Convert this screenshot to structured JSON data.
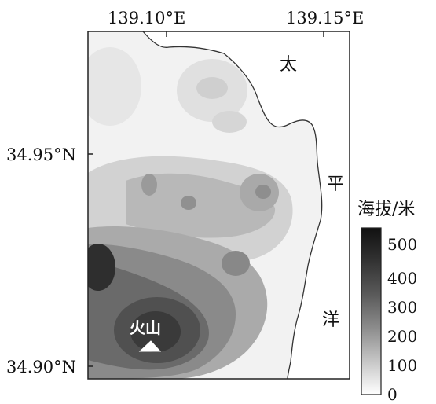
{
  "axes": {
    "lon_labels": [
      "139.10°E",
      "139.15°E"
    ],
    "lat_labels": [
      "34.95°N",
      "34.90°N"
    ]
  },
  "ocean_label_chars": [
    "太",
    "平",
    "洋"
  ],
  "volcano": {
    "label": "火山",
    "icon": "volcano-triangle-icon"
  },
  "legend": {
    "title": "海拔/米",
    "ticks": [
      "500",
      "400",
      "300",
      "200",
      "100",
      "0"
    ],
    "color_low": "#ffffff",
    "color_high": "#111111"
  },
  "colors": {
    "frame": "#222222",
    "coast": "#333333"
  }
}
